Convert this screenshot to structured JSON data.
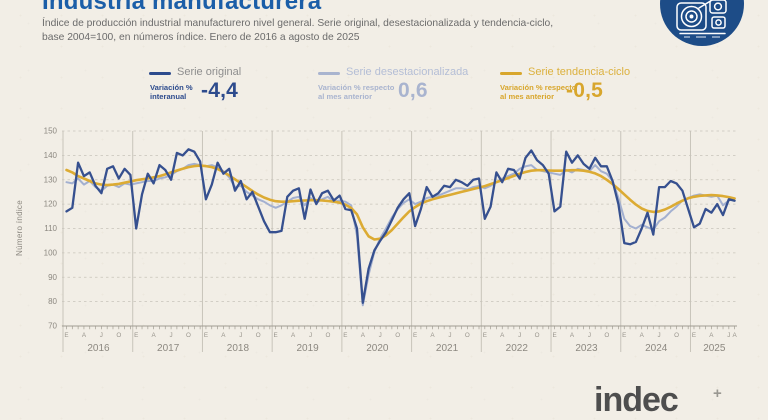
{
  "header": {
    "title": "Industria manufacturera",
    "subtitle_line1": "Índice de producción industrial manufacturero nivel general. Serie original, desestacionalizada y tendencia-ciclo,",
    "subtitle_line2": "base 2004=100, en números índice. Enero de 2016 a agosto de 2025"
  },
  "badge": {
    "icon": "industrial-machine-icon",
    "color": "#1d4c87"
  },
  "legend": {
    "items": [
      {
        "name": "Serie original",
        "metric_label": "Variación %\ninteranual",
        "value": "-4,4",
        "color": "#2d4b8d"
      },
      {
        "name": "Serie desestacionalizada",
        "metric_label": "Variación % respecto\nal mes anterior",
        "value": "0,6",
        "color": "#a9b4cf"
      },
      {
        "name": "Serie tendencia-ciclo",
        "metric_label": "Variación % respecto\nal mes anterior",
        "value": "-0,5",
        "color": "#d8a62c"
      }
    ]
  },
  "footer": {
    "logo_text": "indec",
    "logo_mark": "+"
  },
  "chart_data": {
    "type": "line",
    "title": "Industria manufacturera",
    "xlabel": "",
    "ylabel": "Número índice",
    "ylim": [
      70,
      150
    ],
    "yticks": [
      70,
      80,
      90,
      100,
      110,
      120,
      130,
      140,
      150
    ],
    "grid": "horizontal-dashed, vertical-year-separators",
    "legend_position": "top",
    "x_axis": {
      "period": "monthly",
      "start": "2016-01",
      "end": "2025-08",
      "quarter_letters": [
        "E",
        "A",
        "J",
        "O"
      ],
      "final_label": "A",
      "years": [
        {
          "label": "2016",
          "start": 0,
          "count": 12
        },
        {
          "label": "2017",
          "start": 12,
          "count": 12
        },
        {
          "label": "2018",
          "start": 24,
          "count": 12
        },
        {
          "label": "2019",
          "start": 36,
          "count": 12
        },
        {
          "label": "2020",
          "start": 48,
          "count": 12
        },
        {
          "label": "2021",
          "start": 60,
          "count": 12
        },
        {
          "label": "2022",
          "start": 72,
          "count": 12
        },
        {
          "label": "2023",
          "start": 84,
          "count": 12
        },
        {
          "label": "2024",
          "start": 96,
          "count": 12
        },
        {
          "label": "2025",
          "start": 108,
          "count": 8
        }
      ]
    },
    "series": [
      {
        "name": "Serie original",
        "color": "#36508f",
        "values": [
          117,
          118.5,
          137,
          131.5,
          133,
          127.5,
          124.5,
          134.5,
          135.5,
          130.5,
          134.5,
          132,
          110,
          124,
          132.5,
          128.5,
          136,
          134,
          130,
          141,
          140,
          142.5,
          141.5,
          137.5,
          122,
          128,
          137,
          132.5,
          134.5,
          125.5,
          129.5,
          122,
          125,
          119,
          113,
          108.5,
          108.5,
          109,
          123,
          125.5,
          126.5,
          114,
          126,
          120,
          124.5,
          125.5,
          121.5,
          123.5,
          118,
          117.5,
          110,
          79.5,
          93.5,
          101,
          105,
          108.5,
          113.5,
          118.5,
          122,
          124.5,
          111,
          118,
          127,
          123,
          124.5,
          127.5,
          127,
          130,
          129,
          127.5,
          130,
          130.5,
          114,
          119,
          133,
          129,
          134.5,
          134,
          130.5,
          139,
          142,
          138,
          136,
          132.5,
          117,
          119,
          141.5,
          137,
          140,
          136.5,
          134.5,
          139,
          135.5,
          135.5,
          129.5,
          120,
          104,
          103.5,
          104.5,
          110,
          116.5,
          107.5,
          127,
          127,
          129.5,
          128.5,
          125.5,
          118,
          110.5,
          112,
          118,
          116.5,
          120,
          115.5,
          122,
          121.4
        ]
      },
      {
        "name": "Serie desestacionalizada",
        "color": "#a3b0d0",
        "values": [
          129,
          128.5,
          130.5,
          128,
          129.5,
          127,
          125.5,
          127.5,
          128,
          127,
          128.5,
          128,
          128.5,
          129,
          129.5,
          129.5,
          130.5,
          131,
          132,
          133.5,
          134.5,
          136,
          136.5,
          136,
          135.5,
          136,
          135,
          133.5,
          131,
          127,
          127.5,
          125,
          123.5,
          122,
          121,
          119.5,
          118.5,
          119.5,
          121,
          122.5,
          123,
          119.5,
          122.5,
          120.5,
          122,
          123,
          121,
          121.5,
          121,
          119.5,
          107,
          78.5,
          91,
          100.5,
          106,
          110,
          114.5,
          118,
          120.5,
          122,
          120,
          121,
          122.5,
          123,
          123.5,
          124.5,
          125.5,
          126.5,
          126.5,
          126,
          127,
          127.5,
          126.5,
          127.5,
          129,
          130.5,
          131.5,
          132.5,
          134.5,
          135.5,
          136,
          134,
          133.5,
          133,
          132.5,
          132,
          134,
          133,
          134.5,
          134,
          133.5,
          136,
          133.5,
          132.5,
          129.5,
          122.5,
          114,
          111,
          110,
          111.5,
          110.5,
          109.5,
          113,
          114.5,
          117,
          119,
          121.5,
          122.5,
          123.5,
          124,
          123.5,
          123,
          123.5,
          119.5,
          121.5,
          122.2
        ]
      },
      {
        "name": "Serie tendencia-ciclo",
        "color": "#dcab33",
        "values": [
          134,
          133,
          131.5,
          130.5,
          129.5,
          128.5,
          128,
          127.8,
          128,
          128.3,
          128.8,
          129.3,
          129.8,
          130.2,
          130.5,
          131,
          131.5,
          132.2,
          133,
          133.8,
          134.5,
          135.2,
          135.6,
          135.8,
          135.6,
          135.2,
          134.4,
          133.2,
          131.8,
          130.2,
          128.6,
          127,
          125.4,
          123.9,
          122.7,
          121.8,
          121.2,
          121,
          121,
          121.2,
          121.4,
          121.5,
          121.6,
          121.6,
          121.5,
          121.3,
          121,
          120.6,
          119.8,
          118.4,
          115.8,
          110.5,
          106.8,
          105.5,
          105.8,
          107.2,
          109.4,
          112,
          114.6,
          117,
          118.8,
          120.2,
          121.2,
          122,
          122.6,
          123.2,
          123.8,
          124.4,
          125,
          125.6,
          126.2,
          126.8,
          127.4,
          128.2,
          129,
          129.8,
          130.7,
          131.6,
          132.5,
          133.2,
          133.7,
          133.9,
          133.9,
          133.8,
          133.7,
          133.7,
          133.8,
          133.9,
          133.9,
          133.7,
          133.3,
          132.6,
          131.5,
          130,
          128.2,
          126.2,
          124,
          121.8,
          119.8,
          118.2,
          117.2,
          116.8,
          117,
          117.8,
          118.9,
          120.2,
          121.4,
          122.4,
          123,
          123.4,
          123.6,
          123.7,
          123.6,
          123.3,
          122.9,
          122.3
        ]
      }
    ]
  }
}
